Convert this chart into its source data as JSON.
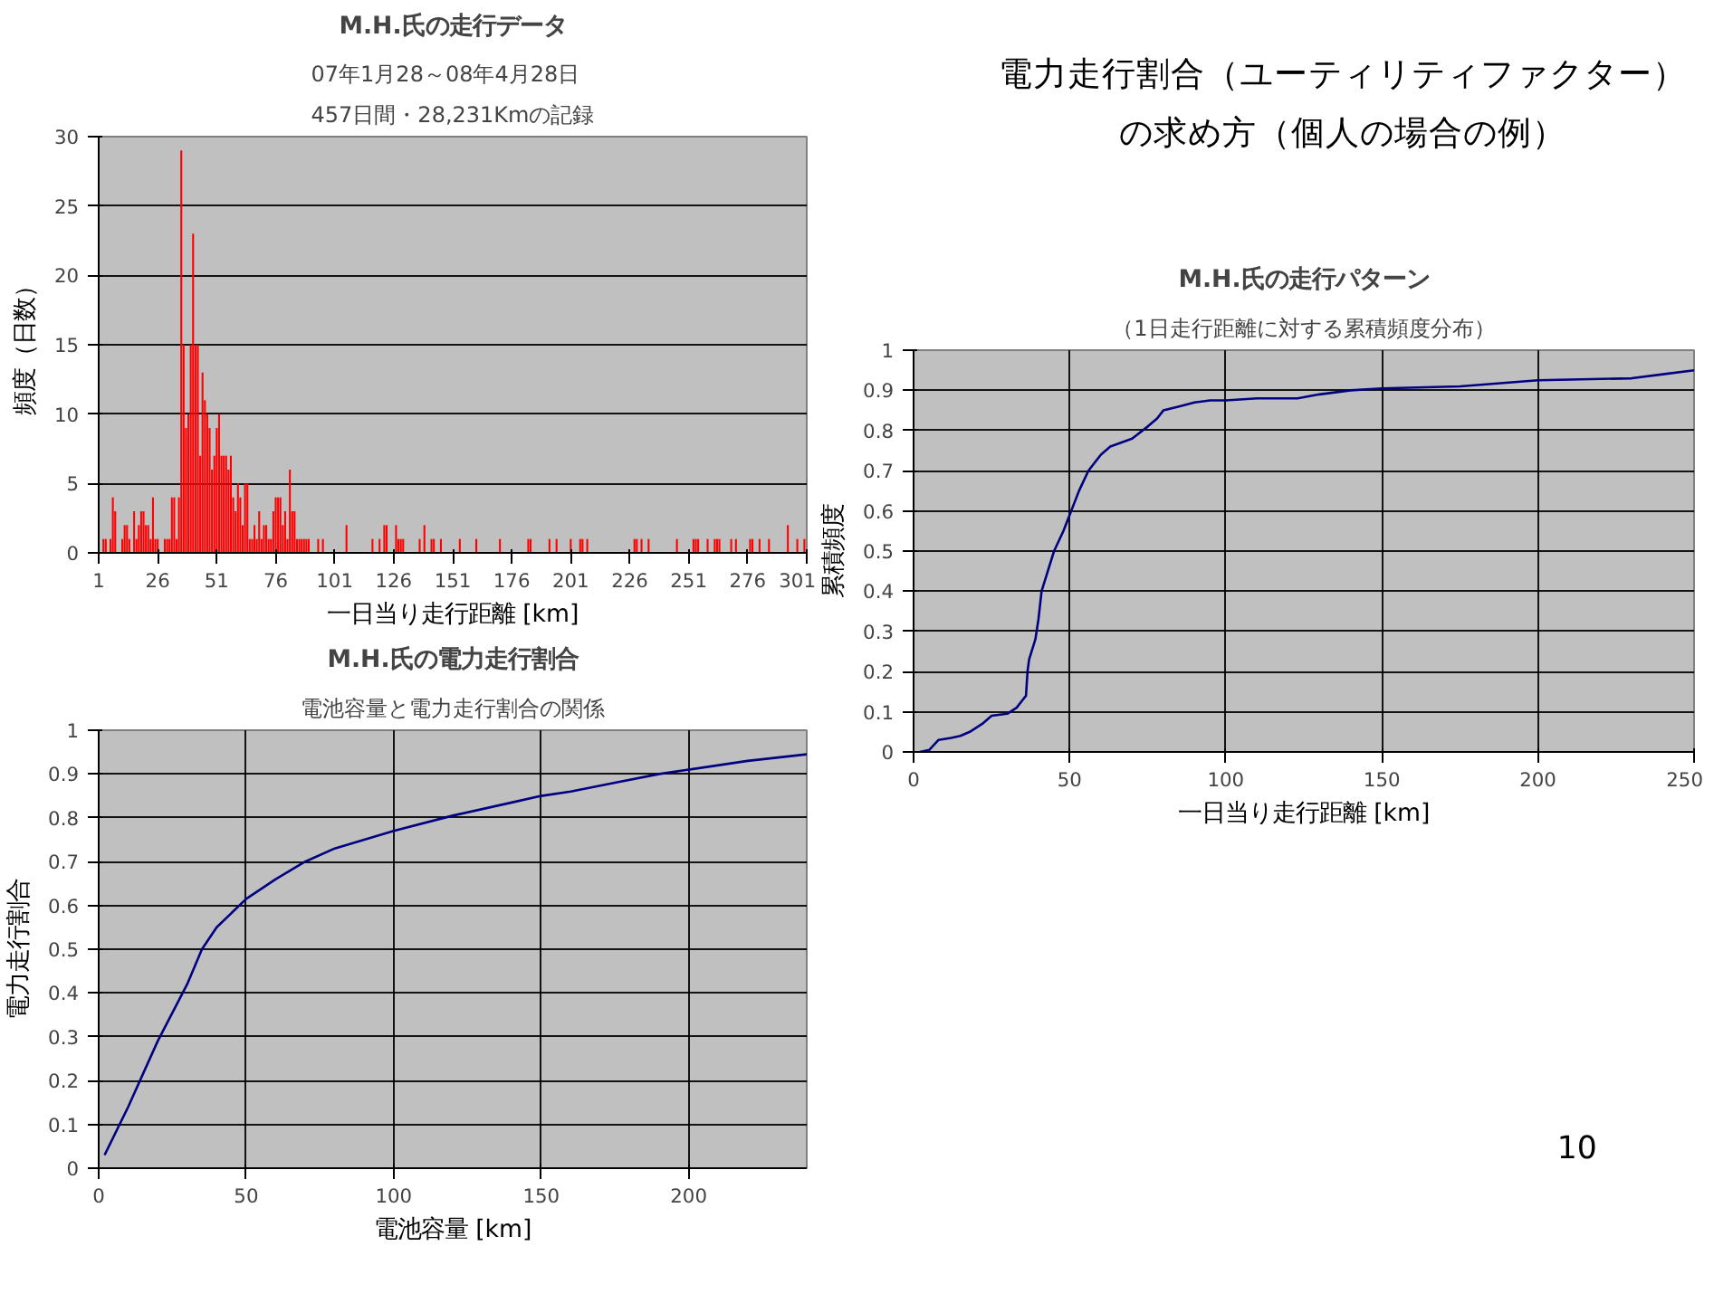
{
  "chart_data": [
    {
      "type": "bar",
      "title": "M.H.氏の走行データ",
      "subtitle": "07年1月28～08年4月28日\n457日間・28,231Kmの記録",
      "xlabel": "一日当り走行距離 [km]",
      "ylabel": "頻度（日数）",
      "color": "#ff0000",
      "xlim": [
        1,
        301
      ],
      "xticks": [
        1,
        26,
        51,
        76,
        101,
        126,
        151,
        176,
        201,
        226,
        251,
        276,
        301
      ],
      "ylim": [
        0,
        30
      ],
      "yticks": [
        0,
        5,
        10,
        15,
        20,
        25,
        30
      ],
      "grid": "y",
      "x": [
        3,
        4,
        6,
        7,
        8,
        11,
        12,
        13,
        14,
        16,
        17,
        18,
        19,
        20,
        21,
        22,
        23,
        24,
        25,
        26,
        29,
        30,
        31,
        32,
        33,
        34,
        35,
        36,
        37,
        38,
        39,
        40,
        41,
        42,
        43,
        44,
        45,
        46,
        47,
        48,
        49,
        50,
        51,
        52,
        53,
        54,
        55,
        56,
        57,
        58,
        59,
        60,
        61,
        62,
        63,
        64,
        65,
        66,
        67,
        68,
        69,
        70,
        71,
        72,
        73,
        74,
        75,
        76,
        77,
        78,
        79,
        80,
        81,
        82,
        83,
        84,
        85,
        86,
        87,
        88,
        89,
        90,
        94,
        96,
        106,
        117,
        120,
        122,
        123,
        127,
        128,
        129,
        130,
        137,
        139,
        142,
        143,
        146,
        154,
        161,
        171,
        183,
        184,
        192,
        195,
        201,
        205,
        206,
        208,
        228,
        229,
        231,
        234,
        246,
        253,
        254,
        255,
        259,
        262,
        263,
        264,
        269,
        271,
        277,
        278,
        281,
        285,
        293,
        297,
        300
      ],
      "values": [
        1,
        1,
        1,
        4,
        3,
        1,
        2,
        2,
        1,
        3,
        1,
        2,
        3,
        3,
        2,
        2,
        1,
        4,
        1,
        1,
        1,
        1,
        1,
        4,
        4,
        1,
        4,
        29,
        15,
        9,
        10,
        15,
        23,
        15,
        15,
        7,
        13,
        11,
        10,
        9,
        6,
        7,
        9,
        10,
        7,
        7,
        7,
        6,
        7,
        4,
        3,
        5,
        4,
        2,
        5,
        5,
        1,
        1,
        2,
        1,
        3,
        1,
        2,
        2,
        1,
        1,
        3,
        4,
        4,
        4,
        2,
        3,
        1,
        6,
        3,
        3,
        1,
        1,
        1,
        1,
        1,
        1,
        1,
        1,
        2,
        1,
        1,
        2,
        2,
        2,
        1,
        1,
        1,
        1,
        2,
        1,
        1,
        1,
        1,
        1,
        1,
        1,
        1,
        1,
        1,
        1,
        1,
        1,
        1,
        1,
        1,
        1,
        1,
        1,
        1,
        1,
        1,
        1,
        1,
        1,
        1,
        1,
        1,
        1,
        1,
        1,
        1,
        2,
        1,
        1
      ]
    },
    {
      "type": "other",
      "title": "電力走行割合（ユーティリティファクター）の求め方（個人の場合の例）"
    },
    {
      "type": "line",
      "title": "M.H.氏の走行パターン",
      "subtitle": "（1日走行距離に対する累積頻度分布）",
      "xlabel": "一日当り走行距離 [km]",
      "ylabel": "累積頻度",
      "color": "#000080",
      "xlim": [
        0,
        250
      ],
      "xticks": [
        0,
        50,
        100,
        150,
        200,
        250
      ],
      "ylim": [
        0,
        1
      ],
      "yticks": [
        0,
        0.1,
        0.2,
        0.3,
        0.4,
        0.5,
        0.6,
        0.7,
        0.8,
        0.9,
        1
      ],
      "grid": true,
      "x": [
        2,
        5,
        8,
        12,
        15,
        18,
        22,
        25,
        30,
        33,
        35,
        36,
        36.5,
        37,
        39,
        40,
        41,
        43,
        45,
        48,
        50,
        53,
        56,
        60,
        63,
        70,
        75,
        78,
        80,
        85,
        90,
        95,
        100,
        110,
        123,
        130,
        140,
        150,
        175,
        200,
        230,
        240,
        250
      ],
      "values": [
        0,
        0.005,
        0.03,
        0.035,
        0.04,
        0.05,
        0.07,
        0.09,
        0.095,
        0.11,
        0.13,
        0.14,
        0.2,
        0.23,
        0.28,
        0.33,
        0.4,
        0.45,
        0.5,
        0.55,
        0.59,
        0.65,
        0.7,
        0.74,
        0.76,
        0.78,
        0.81,
        0.83,
        0.85,
        0.86,
        0.87,
        0.875,
        0.875,
        0.88,
        0.88,
        0.89,
        0.9,
        0.905,
        0.91,
        0.925,
        0.93,
        0.94,
        0.95
      ]
    },
    {
      "type": "line",
      "title": "M.H.氏の電力走行割合",
      "subtitle": "電池容量と電力走行割合の関係",
      "xlabel": "電池容量 [km]",
      "ylabel": "電力走行割合",
      "color": "#000080",
      "xlim": [
        0,
        240
      ],
      "xticks": [
        0,
        50,
        100,
        150,
        200
      ],
      "ylim": [
        0,
        1
      ],
      "yticks": [
        0,
        0.1,
        0.2,
        0.3,
        0.4,
        0.5,
        0.6,
        0.7,
        0.8,
        0.9,
        1
      ],
      "grid": true,
      "x": [
        2,
        10,
        20,
        30,
        35,
        40,
        50,
        60,
        70,
        80,
        90,
        100,
        120,
        140,
        150,
        160,
        175,
        190,
        200,
        220,
        240
      ],
      "values": [
        0.03,
        0.14,
        0.29,
        0.42,
        0.5,
        0.55,
        0.615,
        0.66,
        0.7,
        0.73,
        0.75,
        0.77,
        0.805,
        0.835,
        0.85,
        0.86,
        0.88,
        0.9,
        0.91,
        0.93,
        0.945
      ]
    },
    {
      "type": "other",
      "annotations": [
        "10"
      ]
    }
  ]
}
